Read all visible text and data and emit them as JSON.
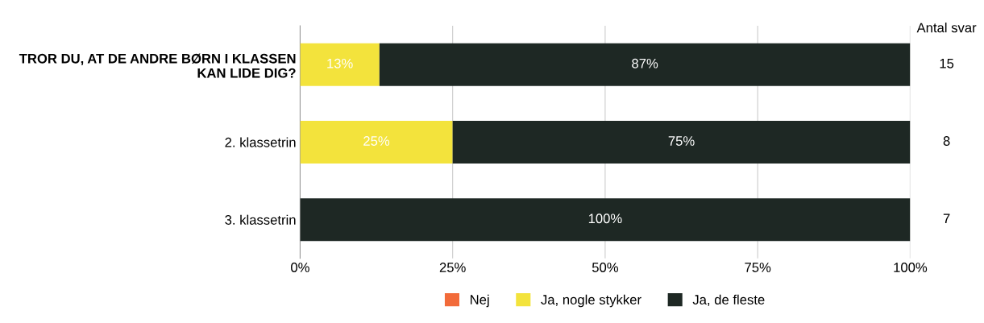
{
  "chart_data": {
    "type": "bar",
    "orientation": "horizontal",
    "stacked": true,
    "categories": [
      "TROR DU, AT DE ANDRE BØRN I KLASSEN KAN LIDE DIG?",
      "2. klassetrin",
      "3. klassetrin"
    ],
    "series": [
      {
        "name": "Nej",
        "color": "#f26b3a",
        "values": [
          0,
          0,
          0
        ],
        "value_labels": [
          null,
          null,
          null
        ]
      },
      {
        "name": "Ja, nogle stykker",
        "color": "#f3e33c",
        "values": [
          13,
          25,
          0
        ],
        "value_labels": [
          "13%",
          "25%",
          null
        ]
      },
      {
        "name": "Ja, de fleste",
        "color": "#1e2824",
        "values": [
          87,
          75,
          100
        ],
        "value_labels": [
          "87%",
          "75%",
          "100%"
        ]
      }
    ],
    "xlim": [
      0,
      100
    ],
    "xticks": [
      {
        "value": 0,
        "label": "0%"
      },
      {
        "value": 25,
        "label": "25%"
      },
      {
        "value": 50,
        "label": "50%"
      },
      {
        "value": 75,
        "label": "75%"
      },
      {
        "value": 100,
        "label": "100%"
      }
    ],
    "grid": "x",
    "legend": "bottom",
    "annotations": [
      "Antal svar",
      "15",
      "8",
      "7"
    ]
  }
}
